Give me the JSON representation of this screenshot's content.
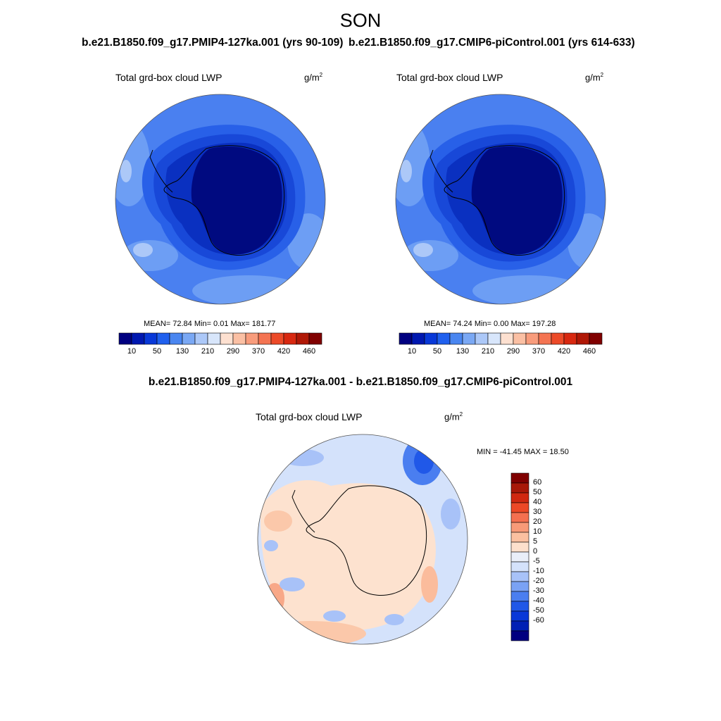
{
  "figure": {
    "season": "SON",
    "left_title": "b.e21.B1850.f09_g17.PMIP4-127ka.001 (yrs 90-109)",
    "right_title": "b.e21.B1850.f09_g17.CMIP6-piControl.001 (yrs 614-633)",
    "diff_title": "b.e21.B1850.f09_g17.PMIP4-127ka.001 - b.e21.B1850.f09_g17.CMIP6-piControl.001"
  },
  "panels": {
    "left": {
      "variable": "Total grd-box cloud LWP",
      "unit_base": "g/m",
      "unit_exp": "2",
      "stats": "MEAN=  72.84  Min=   0.01  Max= 181.77"
    },
    "right": {
      "variable": "Total grd-box cloud LWP",
      "unit_base": "g/m",
      "unit_exp": "2",
      "stats": "MEAN=  74.24  Min=   0.00  Max= 197.28"
    },
    "diff": {
      "variable": "Total grd-box cloud LWP",
      "unit_base": "g/m",
      "unit_exp": "2",
      "stats": "MIN = -41.45 MAX =  18.50"
    }
  },
  "colorbars": {
    "abs_colors": [
      "#000080",
      "#0018b0",
      "#0838d8",
      "#2060ee",
      "#4a86f0",
      "#7aa8f4",
      "#acc8f8",
      "#d8e6fb",
      "#fde0d0",
      "#fbc0a4",
      "#f89c7c",
      "#f47452",
      "#ec4a28",
      "#d82810",
      "#b01806",
      "#800000"
    ],
    "abs_labels": [
      "10",
      "50",
      "130",
      "210",
      "290",
      "370",
      "420",
      "460"
    ],
    "diff_colors": [
      "#000080",
      "#0020b4",
      "#0838d8",
      "#2058e8",
      "#4a7ef0",
      "#7aa2f4",
      "#a8c2f8",
      "#d4e2fb",
      "#e9eef8",
      "#fde0cc",
      "#fbc0a0",
      "#f89a78",
      "#f47050",
      "#ec4826",
      "#d02810",
      "#a81808",
      "#800000"
    ],
    "diff_labels": [
      "60",
      "50",
      "40",
      "30",
      "20",
      "10",
      "5",
      "0",
      "-5",
      "-10",
      "-20",
      "-30",
      "-40",
      "-50",
      "-60"
    ]
  }
}
